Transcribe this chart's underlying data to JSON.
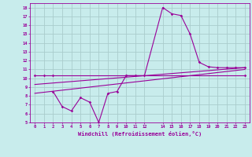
{
  "bg_color": "#c8ecec",
  "grid_color": "#aacccc",
  "line_color": "#990099",
  "xlabel": "Windchill (Refroidissement éolien,°C)",
  "xlim": [
    -0.5,
    23.5
  ],
  "ylim": [
    5,
    18.5
  ],
  "yticks": [
    5,
    6,
    7,
    8,
    9,
    10,
    11,
    12,
    13,
    14,
    15,
    16,
    17,
    18
  ],
  "xticks": [
    0,
    1,
    2,
    3,
    4,
    5,
    6,
    7,
    8,
    9,
    10,
    11,
    12,
    14,
    15,
    16,
    17,
    18,
    19,
    20,
    21,
    22,
    23
  ],
  "xtick_labels": [
    "0",
    "1",
    "2",
    "3",
    "4",
    "5",
    "6",
    "7",
    "8",
    "9",
    "10",
    "11",
    "12",
    "14",
    "15",
    "16",
    "17",
    "18",
    "19",
    "20",
    "21",
    "22",
    "23"
  ],
  "line1_x": [
    0,
    1,
    2,
    10,
    23
  ],
  "line1_y": [
    10.3,
    10.3,
    10.3,
    10.3,
    10.3
  ],
  "line2_x": [
    2,
    3,
    4,
    5,
    6,
    7,
    8,
    9,
    10,
    11,
    12,
    14,
    15,
    16,
    17,
    18,
    19,
    20,
    21,
    22,
    23
  ],
  "line2_y": [
    8.5,
    6.8,
    6.3,
    7.8,
    7.3,
    5.0,
    8.3,
    8.5,
    10.3,
    10.3,
    10.3,
    18.0,
    17.3,
    17.1,
    15.0,
    11.8,
    11.3,
    11.2,
    11.2,
    11.2,
    11.2
  ],
  "line3_x": [
    0,
    23
  ],
  "line3_y": [
    8.3,
    11.0
  ],
  "line4_x": [
    0,
    23
  ],
  "line4_y": [
    9.3,
    11.2
  ]
}
